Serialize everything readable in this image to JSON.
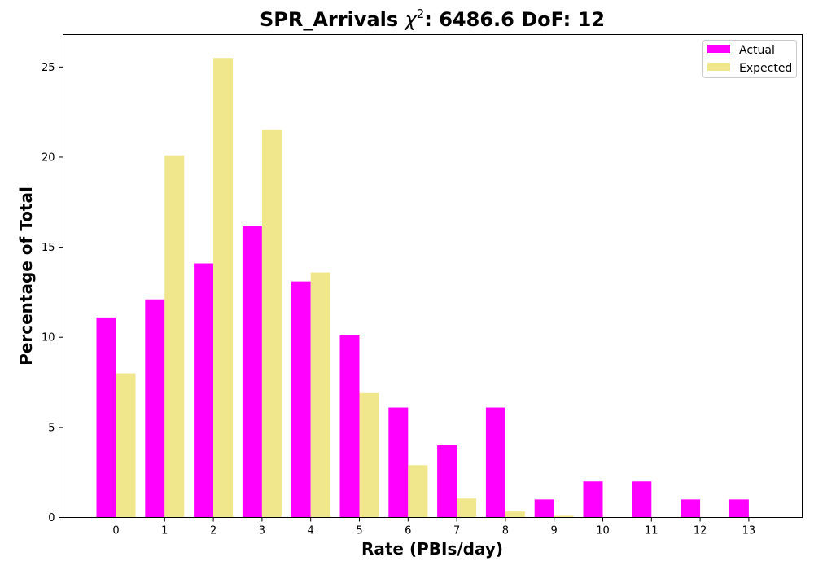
{
  "chart_data": {
    "type": "bar",
    "title_prefix": "SPR_Arrivals ",
    "title_chi": "χ",
    "title_sup": "2",
    "title_suffix": ": 6486.6 DoF: 12",
    "xlabel": "Rate (PBIs/day)",
    "ylabel": "Percentage of Total",
    "categories": [
      "0",
      "1",
      "2",
      "3",
      "4",
      "5",
      "6",
      "7",
      "8",
      "9",
      "10",
      "11",
      "12",
      "13"
    ],
    "series": [
      {
        "name": "Actual",
        "color": "#ff00ff",
        "values": [
          11.1,
          12.1,
          14.1,
          16.2,
          13.1,
          10.1,
          6.1,
          4.0,
          6.1,
          1.0,
          2.0,
          2.0,
          1.0,
          1.0
        ]
      },
      {
        "name": "Expected",
        "color": "#f0e68c",
        "values": [
          8.0,
          20.1,
          25.5,
          21.5,
          13.6,
          6.9,
          2.9,
          1.05,
          0.33,
          0.09,
          0.02,
          0.005,
          0.0,
          0.0
        ]
      }
    ],
    "ylim": [
      0,
      26.8
    ],
    "yticks": [
      0,
      5,
      10,
      15,
      20,
      25
    ],
    "grid": false,
    "legend_position": "top-right"
  }
}
